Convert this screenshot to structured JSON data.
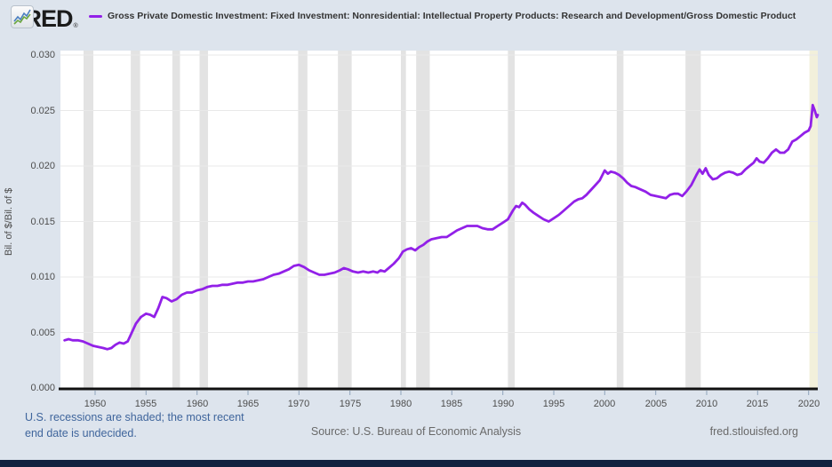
{
  "header": {
    "logo_text": "FRED",
    "registered_mark": "®",
    "legend_label": "Gross Private Domestic Investment: Fixed Investment: Nonresidential: Intellectual Property Products: Research and Development/Gross Domestic Product"
  },
  "chart_data": {
    "type": "line",
    "title": "Gross Private Domestic Investment: Fixed Investment: Nonresidential: Intellectual Property Products: Research and Development/Gross Domestic Product",
    "xlabel": "",
    "ylabel": "Bil. of $/Bil. of $",
    "x_domain": [
      1946.6,
      2020.9
    ],
    "y_domain": [
      0,
      0.0304
    ],
    "grid": "horizontal",
    "legend_position": "top",
    "x_ticks": [
      1950,
      1955,
      1960,
      1965,
      1970,
      1975,
      1980,
      1985,
      1990,
      1995,
      2000,
      2005,
      2010,
      2015,
      2020
    ],
    "y_ticks": [
      {
        "value": 0.0,
        "label": "0.000"
      },
      {
        "value": 0.005,
        "label": "0.005"
      },
      {
        "value": 0.01,
        "label": "0.010"
      },
      {
        "value": 0.015,
        "label": "0.015"
      },
      {
        "value": 0.02,
        "label": "0.020"
      },
      {
        "value": 0.025,
        "label": "0.025"
      },
      {
        "value": 0.03,
        "label": "0.030"
      }
    ],
    "recessions": [
      [
        1948.87,
        1949.83
      ],
      [
        1953.5,
        1954.42
      ],
      [
        1957.58,
        1958.33
      ],
      [
        1960.25,
        1961.08
      ],
      [
        1969.92,
        1970.83
      ],
      [
        1973.83,
        1975.17
      ],
      [
        1980.0,
        1980.5
      ],
      [
        1981.5,
        1982.83
      ],
      [
        1990.5,
        1991.17
      ],
      [
        2001.17,
        2001.83
      ],
      [
        2007.92,
        2009.42
      ]
    ],
    "undecided_recession": [
      2020.08,
      2020.9
    ],
    "series": [
      {
        "name": "Gross Private Domestic Investment: Fixed Investment: Nonresidential: Intellectual Property Products: Research and Development/Gross Domestic Product",
        "color": "#9220e8",
        "points": [
          [
            1947.0,
            0.0043
          ],
          [
            1947.4,
            0.0044
          ],
          [
            1947.8,
            0.0043
          ],
          [
            1948.3,
            0.0043
          ],
          [
            1948.8,
            0.0042
          ],
          [
            1949.3,
            0.004
          ],
          [
            1949.8,
            0.0038
          ],
          [
            1950.3,
            0.0037
          ],
          [
            1950.8,
            0.0036
          ],
          [
            1951.2,
            0.0035
          ],
          [
            1951.6,
            0.0036
          ],
          [
            1952.0,
            0.0039
          ],
          [
            1952.4,
            0.0041
          ],
          [
            1952.8,
            0.004
          ],
          [
            1953.2,
            0.0042
          ],
          [
            1953.6,
            0.005
          ],
          [
            1954.0,
            0.0058
          ],
          [
            1954.5,
            0.0064
          ],
          [
            1955.0,
            0.0067
          ],
          [
            1955.4,
            0.0066
          ],
          [
            1955.8,
            0.0064
          ],
          [
            1956.2,
            0.0072
          ],
          [
            1956.6,
            0.0082
          ],
          [
            1957.0,
            0.0081
          ],
          [
            1957.5,
            0.0078
          ],
          [
            1958.0,
            0.008
          ],
          [
            1958.5,
            0.0084
          ],
          [
            1959.0,
            0.0086
          ],
          [
            1959.5,
            0.0086
          ],
          [
            1960.0,
            0.0088
          ],
          [
            1960.5,
            0.0089
          ],
          [
            1961.0,
            0.0091
          ],
          [
            1961.5,
            0.0092
          ],
          [
            1962.0,
            0.0092
          ],
          [
            1962.5,
            0.0093
          ],
          [
            1963.0,
            0.0093
          ],
          [
            1963.5,
            0.0094
          ],
          [
            1964.0,
            0.0095
          ],
          [
            1964.5,
            0.0095
          ],
          [
            1965.0,
            0.0096
          ],
          [
            1965.5,
            0.0096
          ],
          [
            1966.0,
            0.0097
          ],
          [
            1966.5,
            0.0098
          ],
          [
            1967.0,
            0.01
          ],
          [
            1967.5,
            0.0102
          ],
          [
            1968.0,
            0.0103
          ],
          [
            1968.5,
            0.0105
          ],
          [
            1969.0,
            0.0107
          ],
          [
            1969.5,
            0.011
          ],
          [
            1970.0,
            0.0111
          ],
          [
            1970.5,
            0.0109
          ],
          [
            1971.0,
            0.0106
          ],
          [
            1971.5,
            0.0104
          ],
          [
            1972.0,
            0.0102
          ],
          [
            1972.5,
            0.0102
          ],
          [
            1973.0,
            0.0103
          ],
          [
            1973.5,
            0.0104
          ],
          [
            1974.0,
            0.0106
          ],
          [
            1974.4,
            0.0108
          ],
          [
            1974.8,
            0.0107
          ],
          [
            1975.3,
            0.0105
          ],
          [
            1975.8,
            0.0104
          ],
          [
            1976.3,
            0.0105
          ],
          [
            1976.8,
            0.0104
          ],
          [
            1977.3,
            0.0105
          ],
          [
            1977.7,
            0.0104
          ],
          [
            1978.0,
            0.0106
          ],
          [
            1978.4,
            0.0105
          ],
          [
            1978.8,
            0.0108
          ],
          [
            1979.3,
            0.0112
          ],
          [
            1979.8,
            0.0117
          ],
          [
            1980.2,
            0.0123
          ],
          [
            1980.6,
            0.0125
          ],
          [
            1981.0,
            0.0126
          ],
          [
            1981.4,
            0.0124
          ],
          [
            1981.8,
            0.0127
          ],
          [
            1982.2,
            0.0129
          ],
          [
            1982.6,
            0.0132
          ],
          [
            1983.0,
            0.0134
          ],
          [
            1983.5,
            0.0135
          ],
          [
            1984.0,
            0.0136
          ],
          [
            1984.5,
            0.0136
          ],
          [
            1985.0,
            0.0139
          ],
          [
            1985.5,
            0.0142
          ],
          [
            1986.0,
            0.0144
          ],
          [
            1986.5,
            0.0146
          ],
          [
            1987.0,
            0.0146
          ],
          [
            1987.5,
            0.0146
          ],
          [
            1988.0,
            0.0144
          ],
          [
            1988.5,
            0.0143
          ],
          [
            1989.0,
            0.0143
          ],
          [
            1989.5,
            0.0146
          ],
          [
            1990.0,
            0.0149
          ],
          [
            1990.5,
            0.0152
          ],
          [
            1991.0,
            0.016
          ],
          [
            1991.3,
            0.0164
          ],
          [
            1991.6,
            0.0163
          ],
          [
            1991.9,
            0.0167
          ],
          [
            1992.2,
            0.0165
          ],
          [
            1992.6,
            0.0161
          ],
          [
            1993.0,
            0.0158
          ],
          [
            1993.5,
            0.0155
          ],
          [
            1994.0,
            0.0152
          ],
          [
            1994.5,
            0.015
          ],
          [
            1995.0,
            0.0153
          ],
          [
            1995.5,
            0.0156
          ],
          [
            1996.0,
            0.016
          ],
          [
            1996.5,
            0.0164
          ],
          [
            1997.0,
            0.0168
          ],
          [
            1997.4,
            0.017
          ],
          [
            1997.8,
            0.0171
          ],
          [
            1998.2,
            0.0174
          ],
          [
            1998.6,
            0.0178
          ],
          [
            1999.0,
            0.0182
          ],
          [
            1999.5,
            0.0187
          ],
          [
            2000.0,
            0.0196
          ],
          [
            2000.3,
            0.0193
          ],
          [
            2000.6,
            0.0195
          ],
          [
            2001.0,
            0.0194
          ],
          [
            2001.4,
            0.0192
          ],
          [
            2001.8,
            0.0189
          ],
          [
            2002.2,
            0.0185
          ],
          [
            2002.6,
            0.0182
          ],
          [
            2003.0,
            0.0181
          ],
          [
            2003.5,
            0.0179
          ],
          [
            2004.0,
            0.0177
          ],
          [
            2004.5,
            0.0174
          ],
          [
            2005.0,
            0.0173
          ],
          [
            2005.5,
            0.0172
          ],
          [
            2006.0,
            0.0171
          ],
          [
            2006.4,
            0.0174
          ],
          [
            2006.8,
            0.0175
          ],
          [
            2007.2,
            0.0175
          ],
          [
            2007.6,
            0.0173
          ],
          [
            2008.0,
            0.0177
          ],
          [
            2008.5,
            0.0183
          ],
          [
            2009.0,
            0.0192
          ],
          [
            2009.3,
            0.0197
          ],
          [
            2009.6,
            0.0193
          ],
          [
            2009.9,
            0.0198
          ],
          [
            2010.2,
            0.0192
          ],
          [
            2010.6,
            0.0188
          ],
          [
            2011.0,
            0.0189
          ],
          [
            2011.4,
            0.0192
          ],
          [
            2011.8,
            0.0194
          ],
          [
            2012.2,
            0.0195
          ],
          [
            2012.6,
            0.0194
          ],
          [
            2013.0,
            0.0192
          ],
          [
            2013.4,
            0.0193
          ],
          [
            2013.8,
            0.0197
          ],
          [
            2014.2,
            0.02
          ],
          [
            2014.6,
            0.0203
          ],
          [
            2014.9,
            0.0207
          ],
          [
            2015.2,
            0.0204
          ],
          [
            2015.6,
            0.0203
          ],
          [
            2016.0,
            0.0207
          ],
          [
            2016.4,
            0.0212
          ],
          [
            2016.8,
            0.0215
          ],
          [
            2017.2,
            0.0212
          ],
          [
            2017.6,
            0.0212
          ],
          [
            2018.0,
            0.0215
          ],
          [
            2018.4,
            0.0222
          ],
          [
            2018.8,
            0.0224
          ],
          [
            2019.2,
            0.0227
          ],
          [
            2019.6,
            0.023
          ],
          [
            2020.0,
            0.0232
          ],
          [
            2020.2,
            0.0236
          ],
          [
            2020.4,
            0.0255
          ],
          [
            2020.6,
            0.025
          ],
          [
            2020.8,
            0.0244
          ],
          [
            2020.9,
            0.0246
          ]
        ]
      }
    ]
  },
  "colors": {
    "background": "#dde4ed",
    "plot_background": "#ffffff",
    "recession_band": "#e3e3e3",
    "undecided_band": "#f2f0db",
    "gridline": "#e9e9e9",
    "axis": "#111111",
    "tick_mark": "#8fa3bb",
    "line": "#9220e8",
    "note_link": "#3f659c",
    "footer_text": "#696969",
    "bottom_bar": "#11213f"
  },
  "footer": {
    "note_line1": "U.S. recessions are shaded; the most recent",
    "note_line2": "end date is undecided.",
    "source": "Source: U.S. Bureau of Economic Analysis",
    "site": "fred.stlouisfed.org"
  }
}
